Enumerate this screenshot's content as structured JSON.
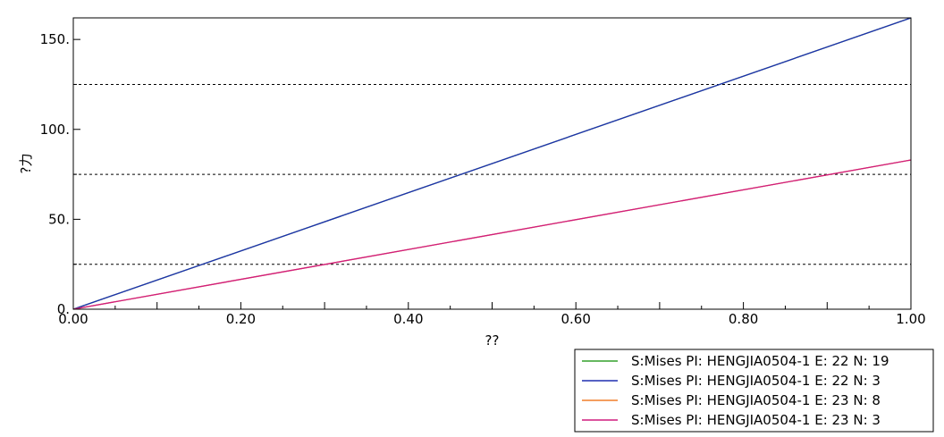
{
  "chart_data": {
    "type": "line",
    "xlabel": "??",
    "ylabel": "?力",
    "xlim": [
      0,
      1
    ],
    "ylim": [
      0,
      162
    ],
    "x_ticks": [
      0,
      0.2,
      0.4,
      0.6,
      0.8,
      1.0
    ],
    "x_tick_labels": [
      "0.00",
      "0.20",
      "0.40",
      "0.60",
      "0.80",
      "1.00"
    ],
    "y_ticks": [
      0,
      50,
      100,
      150
    ],
    "y_tick_labels": [
      "0.",
      "50.",
      "100.",
      "150."
    ],
    "reference_lines_y": [
      25,
      75,
      125
    ],
    "legend_position": "bottom-right",
    "series": [
      {
        "name": "S:Mises PI: HENGJIA0504-1 E: 22 N: 19",
        "color": "#33a02c",
        "x": [
          0,
          1
        ],
        "y": [
          0,
          162
        ]
      },
      {
        "name": "S:Mises PI: HENGJIA0504-1 E: 22 N: 3",
        "color": "#1f2fb0",
        "x": [
          0,
          1
        ],
        "y": [
          0,
          162
        ]
      },
      {
        "name": "S:Mises PI: HENGJIA0504-1 E: 23 N: 8",
        "color": "#f07f2a",
        "x": [
          0,
          1
        ],
        "y": [
          0,
          83
        ]
      },
      {
        "name": "S:Mises PI: HENGJIA0504-1 E: 23 N: 3",
        "color": "#d01c7f",
        "x": [
          0,
          1
        ],
        "y": [
          0,
          83
        ]
      }
    ]
  }
}
